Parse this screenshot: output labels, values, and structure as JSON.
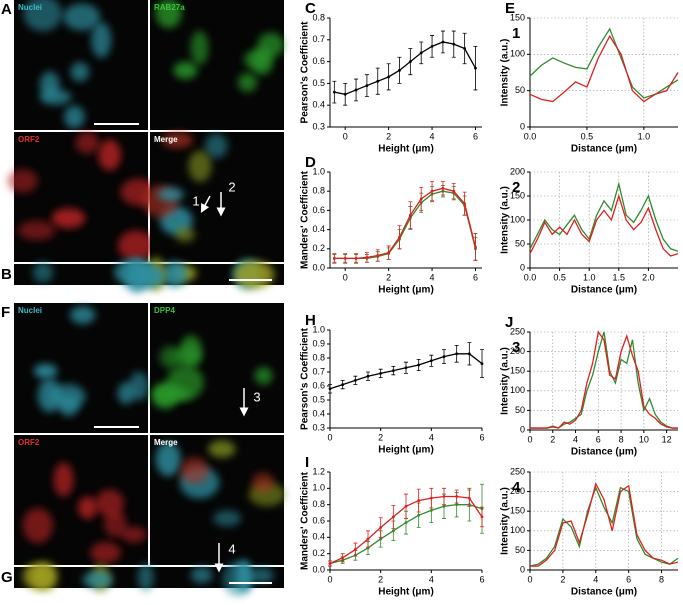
{
  "image_panels": [
    {
      "letter": "A",
      "tiles": [
        "Nuclei",
        "RAB27a",
        "ORF2",
        "Merge"
      ],
      "arrows": [
        "1",
        "2"
      ]
    },
    {
      "letter": "B"
    },
    {
      "letter": "F",
      "tiles": [
        "Nuclei",
        "DPP4",
        "ORF2",
        "Merge"
      ],
      "arrows": [
        "3",
        "4"
      ]
    },
    {
      "letter": "G"
    }
  ],
  "chart_data": [
    {
      "type": "line",
      "panel": "C",
      "ylabel": "Pearson's Coefficient",
      "xlabel": "Height (μm)",
      "x": [
        -0.5,
        0,
        0.5,
        1,
        1.5,
        2,
        2.5,
        3,
        3.5,
        4,
        4.5,
        5,
        5.5,
        6
      ],
      "series": [
        {
          "color": "#000000",
          "values": [
            0.46,
            0.45,
            0.47,
            0.49,
            0.51,
            0.53,
            0.56,
            0.6,
            0.64,
            0.67,
            0.69,
            0.68,
            0.66,
            0.57
          ],
          "errors": [
            0.05,
            0.05,
            0.05,
            0.05,
            0.06,
            0.06,
            0.06,
            0.06,
            0.05,
            0.05,
            0.05,
            0.06,
            0.07,
            0.1
          ]
        }
      ],
      "xlim": [
        -0.7,
        6.3
      ],
      "xticks": [
        0,
        2,
        4,
        6
      ],
      "ylim": [
        0.3,
        0.8
      ],
      "yticks": [
        0.3,
        0.4,
        0.5,
        0.6,
        0.7,
        0.8
      ],
      "grid": false
    },
    {
      "type": "line",
      "panel": "D",
      "ylabel": "Manders' Coefficient",
      "xlabel": "Height (μm)",
      "x": [
        -0.5,
        0,
        0.5,
        1,
        1.5,
        2,
        2.5,
        3,
        3.5,
        4,
        4.5,
        5,
        5.5,
        6
      ],
      "series": [
        {
          "color": "#2e8b2e",
          "values": [
            0.1,
            0.1,
            0.1,
            0.1,
            0.12,
            0.15,
            0.3,
            0.52,
            0.68,
            0.77,
            0.8,
            0.78,
            0.65,
            0.2
          ],
          "errors": [
            0.04,
            0.04,
            0.04,
            0.04,
            0.05,
            0.06,
            0.1,
            0.12,
            0.1,
            0.08,
            0.06,
            0.07,
            0.1,
            0.12
          ]
        },
        {
          "color": "#e02020",
          "values": [
            0.1,
            0.1,
            0.1,
            0.11,
            0.13,
            0.16,
            0.32,
            0.55,
            0.72,
            0.8,
            0.83,
            0.8,
            0.67,
            0.22
          ],
          "errors": [
            0.05,
            0.05,
            0.05,
            0.05,
            0.06,
            0.07,
            0.12,
            0.14,
            0.12,
            0.1,
            0.07,
            0.08,
            0.12,
            0.14
          ]
        }
      ],
      "xlim": [
        -0.7,
        6.3
      ],
      "xticks": [
        0,
        2,
        4,
        6
      ],
      "ylim": [
        0,
        1
      ],
      "yticks": [
        {
          "value": 0,
          "label": "0.0"
        },
        0.2,
        0.4,
        0.6,
        0.8,
        {
          "value": 1,
          "label": "1.0"
        }
      ],
      "grid": false
    },
    {
      "type": "line",
      "panel": "E",
      "number": "1",
      "ylabel": "Intensity (a.u.)",
      "xlabel": "Distance (μm)",
      "x": [
        0,
        0.1,
        0.2,
        0.3,
        0.4,
        0.5,
        0.6,
        0.7,
        0.8,
        0.9,
        1,
        1.1,
        1.2,
        1.3
      ],
      "series": [
        {
          "color": "#2e8b2e",
          "values": [
            70,
            85,
            95,
            88,
            82,
            80,
            110,
            135,
            95,
            55,
            40,
            45,
            55,
            65
          ]
        },
        {
          "color": "#e02020",
          "values": [
            45,
            38,
            35,
            48,
            62,
            55,
            95,
            125,
            100,
            50,
            35,
            45,
            50,
            75
          ]
        }
      ],
      "xlim": [
        0,
        1.3
      ],
      "xticks": [
        {
          "value": 0,
          "label": "0.0"
        },
        0.5,
        {
          "value": 1,
          "label": "1.0"
        }
      ],
      "ylim": [
        0,
        150
      ],
      "yticks": [
        0,
        50,
        100,
        150
      ],
      "grid": true
    },
    {
      "type": "line",
      "number": "2",
      "ylabel": "Intensity (a.u.)",
      "xlabel": "Distance (μm)",
      "x": [
        0,
        0.125,
        0.25,
        0.375,
        0.5,
        0.625,
        0.75,
        0.875,
        1,
        1.125,
        1.25,
        1.375,
        1.5,
        1.625,
        1.75,
        1.875,
        2,
        2.125,
        2.25,
        2.375,
        2.5
      ],
      "series": [
        {
          "color": "#2e8b2e",
          "values": [
            40,
            70,
            100,
            80,
            70,
            90,
            110,
            80,
            60,
            110,
            140,
            120,
            175,
            110,
            95,
            120,
            150,
            100,
            60,
            40,
            35
          ]
        },
        {
          "color": "#e02020",
          "values": [
            30,
            60,
            95,
            70,
            85,
            70,
            100,
            70,
            55,
            100,
            120,
            100,
            150,
            100,
            80,
            95,
            125,
            80,
            40,
            25,
            30
          ]
        }
      ],
      "xlim": [
        0,
        2.5
      ],
      "xticks": [
        {
          "value": 0,
          "label": "0.0"
        },
        0.5,
        {
          "value": 1,
          "label": "1.0"
        },
        1.5,
        {
          "value": 2,
          "label": "2.0"
        }
      ],
      "ylim": [
        0,
        200
      ],
      "yticks": [
        0,
        50,
        100,
        150,
        200
      ],
      "grid": true
    },
    {
      "type": "line",
      "panel": "H",
      "ylabel": "Pearson's Coefficient",
      "xlabel": "Height (μm)",
      "x": [
        0,
        0.5,
        1,
        1.5,
        2,
        2.5,
        3,
        3.5,
        4,
        4.5,
        5,
        5.5,
        6
      ],
      "series": [
        {
          "color": "#000000",
          "values": [
            0.58,
            0.61,
            0.64,
            0.67,
            0.69,
            0.71,
            0.73,
            0.75,
            0.78,
            0.81,
            0.83,
            0.83,
            0.76
          ],
          "errors": [
            0.03,
            0.03,
            0.03,
            0.03,
            0.03,
            0.03,
            0.04,
            0.04,
            0.04,
            0.05,
            0.06,
            0.08,
            0.1
          ]
        }
      ],
      "xlim": [
        0,
        6
      ],
      "xticks": [
        0,
        2,
        4,
        6
      ],
      "ylim": [
        0.3,
        1
      ],
      "yticks": [
        0.3,
        0.4,
        0.5,
        0.6,
        0.7,
        0.8,
        0.9,
        {
          "value": 1,
          "label": "1.0"
        }
      ],
      "grid": false
    },
    {
      "type": "line",
      "panel": "I",
      "ylabel": "Manders' Coefficient",
      "xlabel": "Height (μm)",
      "x": [
        0,
        0.5,
        1,
        1.5,
        2,
        2.5,
        3,
        3.5,
        4,
        4.5,
        5,
        5.5,
        6
      ],
      "series": [
        {
          "color": "#2e8b2e",
          "values": [
            0.08,
            0.12,
            0.18,
            0.27,
            0.38,
            0.48,
            0.58,
            0.67,
            0.73,
            0.78,
            0.8,
            0.8,
            0.75
          ],
          "errors": [
            0.03,
            0.04,
            0.06,
            0.08,
            0.1,
            0.12,
            0.14,
            0.15,
            0.15,
            0.15,
            0.15,
            0.2,
            0.3
          ]
        },
        {
          "color": "#e02020",
          "values": [
            0.08,
            0.15,
            0.25,
            0.38,
            0.52,
            0.65,
            0.78,
            0.85,
            0.88,
            0.9,
            0.9,
            0.88,
            0.65
          ],
          "errors": [
            0.03,
            0.05,
            0.08,
            0.1,
            0.12,
            0.14,
            0.15,
            0.14,
            0.12,
            0.1,
            0.08,
            0.1,
            0.12
          ]
        }
      ],
      "xlim": [
        0,
        6
      ],
      "xticks": [
        0,
        2,
        4,
        6
      ],
      "ylim": [
        0,
        1.2
      ],
      "yticks": [
        {
          "value": 0,
          "label": "0.0"
        },
        0.2,
        0.4,
        0.6,
        0.8,
        {
          "value": 1,
          "label": "1.0"
        },
        1.2
      ],
      "grid": false
    },
    {
      "type": "line",
      "panel": "J",
      "number": "3",
      "ylabel": "Intensity (a.u.)",
      "xlabel": "Distance (μm)",
      "x": [
        0,
        0.5,
        1,
        1.5,
        2,
        2.5,
        3,
        3.5,
        4,
        4.5,
        5,
        5.5,
        6,
        6.5,
        7,
        7.5,
        8,
        8.5,
        9,
        9.5,
        10,
        10.5,
        11,
        11.5,
        12,
        12.5,
        13
      ],
      "series": [
        {
          "color": "#2e8b2e",
          "values": [
            5,
            5,
            5,
            5,
            10,
            5,
            15,
            20,
            30,
            40,
            100,
            140,
            200,
            250,
            150,
            120,
            180,
            170,
            230,
            120,
            50,
            80,
            40,
            20,
            10,
            5,
            5
          ]
        },
        {
          "color": "#e02020",
          "values": [
            5,
            5,
            5,
            5,
            8,
            5,
            20,
            15,
            25,
            50,
            120,
            170,
            250,
            230,
            140,
            130,
            200,
            240,
            190,
            150,
            60,
            40,
            30,
            15,
            8,
            5,
            5
          ]
        }
      ],
      "xlim": [
        0,
        13
      ],
      "xticks": [
        0,
        2,
        4,
        6,
        8,
        10,
        12
      ],
      "ylim": [
        0,
        250
      ],
      "yticks": [
        0,
        50,
        100,
        150,
        200,
        250
      ],
      "grid": true
    },
    {
      "type": "line",
      "number": "4",
      "ylabel": "Intensity (a.u.)",
      "xlabel": "Distance (μm)",
      "x": [
        0,
        0.5,
        1,
        1.5,
        2,
        2.5,
        3,
        3.5,
        4,
        4.5,
        5,
        5.5,
        6,
        6.5,
        7,
        7.5,
        8,
        8.5,
        9
      ],
      "series": [
        {
          "color": "#2e8b2e",
          "values": [
            10,
            15,
            30,
            60,
            130,
            110,
            60,
            150,
            210,
            160,
            120,
            210,
            200,
            80,
            40,
            30,
            20,
            15,
            30
          ]
        },
        {
          "color": "#e02020",
          "values": [
            10,
            10,
            25,
            50,
            120,
            125,
            70,
            140,
            220,
            180,
            100,
            200,
            215,
            90,
            50,
            30,
            25,
            15,
            20
          ]
        }
      ],
      "xlim": [
        0,
        9
      ],
      "xticks": [
        0,
        2,
        4,
        6,
        8
      ],
      "ylim": [
        0,
        250
      ],
      "yticks": [
        0,
        50,
        100,
        150,
        200,
        250
      ],
      "grid": true
    }
  ]
}
